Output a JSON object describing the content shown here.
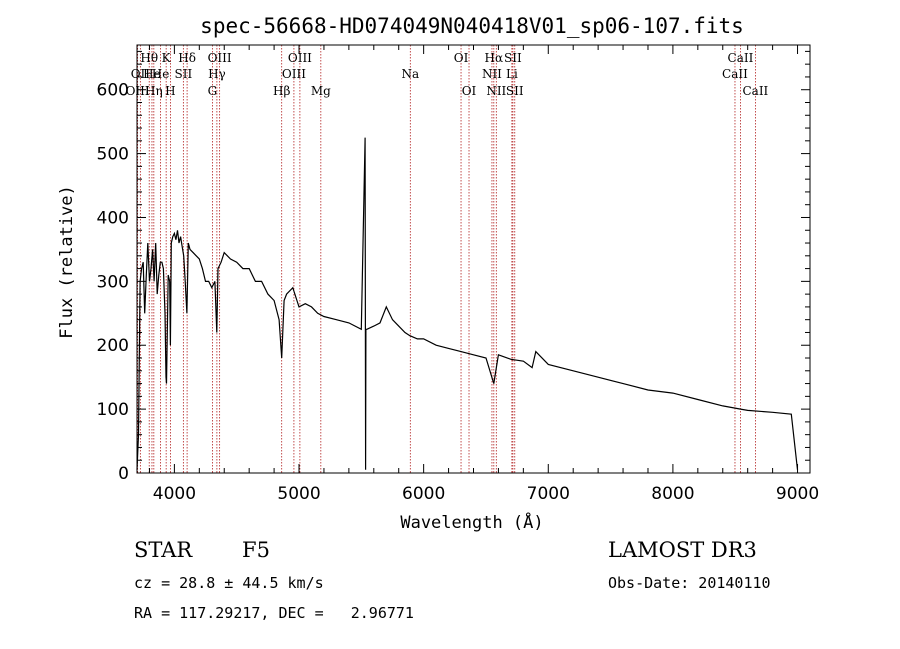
{
  "chart_data": {
    "type": "line",
    "title": "spec-56668-HD074049N040418V01_sp06-107.fits",
    "xlabel": "Wavelength (Å)",
    "ylabel": "Flux (relative)",
    "xlim": [
      3700,
      9100
    ],
    "ylim": [
      0,
      670
    ],
    "xticks": [
      4000,
      5000,
      6000,
      7000,
      8000,
      9000
    ],
    "yticks": [
      0,
      100,
      200,
      300,
      400,
      500,
      600
    ],
    "series": [
      {
        "name": "flux",
        "x": [
          3700,
          3712,
          3725,
          3737,
          3750,
          3762,
          3775,
          3787,
          3800,
          3812,
          3825,
          3837,
          3850,
          3862,
          3875,
          3887,
          3900,
          3912,
          3925,
          3933,
          3937,
          3950,
          3962,
          3968,
          3975,
          3987,
          4000,
          4012,
          4025,
          4037,
          4050,
          4062,
          4075,
          4087,
          4100,
          4112,
          4125,
          4150,
          4175,
          4200,
          4225,
          4250,
          4275,
          4300,
          4325,
          4340,
          4350,
          4375,
          4400,
          4450,
          4500,
          4550,
          4600,
          4650,
          4700,
          4750,
          4800,
          4840,
          4861,
          4880,
          4900,
          4950,
          5000,
          5050,
          5100,
          5150,
          5200,
          5300,
          5400,
          5500,
          5530,
          5534,
          5537,
          5545,
          5600,
          5650,
          5700,
          5750,
          5800,
          5850,
          5890,
          5950,
          6000,
          6100,
          6200,
          6300,
          6400,
          6500,
          6563,
          6600,
          6700,
          6800,
          6870,
          6900,
          7000,
          7200,
          7400,
          7600,
          7800,
          8000,
          8200,
          8400,
          8542,
          8600,
          8800,
          8950,
          9000
        ],
        "y": [
          5,
          60,
          300,
          320,
          330,
          250,
          310,
          360,
          300,
          320,
          350,
          300,
          360,
          280,
          310,
          330,
          330,
          320,
          250,
          150,
          140,
          310,
          300,
          200,
          360,
          370,
          375,
          365,
          380,
          360,
          370,
          355,
          340,
          300,
          250,
          360,
          350,
          345,
          340,
          335,
          320,
          300,
          300,
          290,
          300,
          220,
          320,
          330,
          345,
          335,
          330,
          320,
          320,
          300,
          300,
          280,
          270,
          240,
          180,
          270,
          280,
          290,
          260,
          265,
          260,
          250,
          245,
          240,
          235,
          225,
          525,
          5,
          225,
          225,
          230,
          235,
          260,
          240,
          230,
          220,
          215,
          210,
          210,
          200,
          195,
          190,
          185,
          180,
          140,
          185,
          178,
          175,
          165,
          190,
          170,
          160,
          150,
          140,
          130,
          125,
          115,
          105,
          100,
          98,
          95,
          92,
          5
        ]
      }
    ],
    "lines": [
      {
        "label": "Hθ",
        "x": 3798,
        "row": 1
      },
      {
        "label": "OII",
        "x": 3727,
        "row": 2
      },
      {
        "label": "OIII",
        "x": 3705,
        "row": 3
      },
      {
        "label": "He",
        "x": 3820,
        "row": 2
      },
      {
        "label": "Hη",
        "x": 3835,
        "row": 3
      },
      {
        "label": "K",
        "x": 3934,
        "row": 1
      },
      {
        "label": "He",
        "x": 3889,
        "row": 2
      },
      {
        "label": "H",
        "x": 3968,
        "row": 3
      },
      {
        "label": "SII",
        "x": 4072,
        "row": 2
      },
      {
        "label": "Hδ",
        "x": 4102,
        "row": 1
      },
      {
        "label": "OIII",
        "x": 4363,
        "row": 1
      },
      {
        "label": "Hγ",
        "x": 4341,
        "row": 2
      },
      {
        "label": "G",
        "x": 4305,
        "row": 3
      },
      {
        "label": "OIII",
        "x": 5007,
        "row": 1
      },
      {
        "label": "OIII",
        "x": 4959,
        "row": 2
      },
      {
        "label": "Hβ",
        "x": 4861,
        "row": 3
      },
      {
        "label": "Mg",
        "x": 5175,
        "row": 3
      },
      {
        "label": "Na",
        "x": 5893,
        "row": 2
      },
      {
        "label": "OI",
        "x": 6300,
        "row": 1
      },
      {
        "label": "OI",
        "x": 6364,
        "row": 3
      },
      {
        "label": "Hα",
        "x": 6563,
        "row": 1
      },
      {
        "label": "SII",
        "x": 6716,
        "row": 1
      },
      {
        "label": "NII",
        "x": 6548,
        "row": 2
      },
      {
        "label": "Li",
        "x": 6708,
        "row": 2
      },
      {
        "label": "NII",
        "x": 6583,
        "row": 3
      },
      {
        "label": "SII",
        "x": 6731,
        "row": 3
      },
      {
        "label": "CaII",
        "x": 8542,
        "row": 1
      },
      {
        "label": "CaII",
        "x": 8498,
        "row": 2
      },
      {
        "label": "CaII",
        "x": 8662,
        "row": 3
      }
    ]
  },
  "info": {
    "class_label": "STAR",
    "subclass": "F5",
    "survey": "LAMOST DR3",
    "cz": "cz = 28.8 ± 44.5 km/s",
    "obs_date": "Obs-Date: 20140110",
    "radec": "RA = 117.29217, DEC =   2.96771"
  }
}
